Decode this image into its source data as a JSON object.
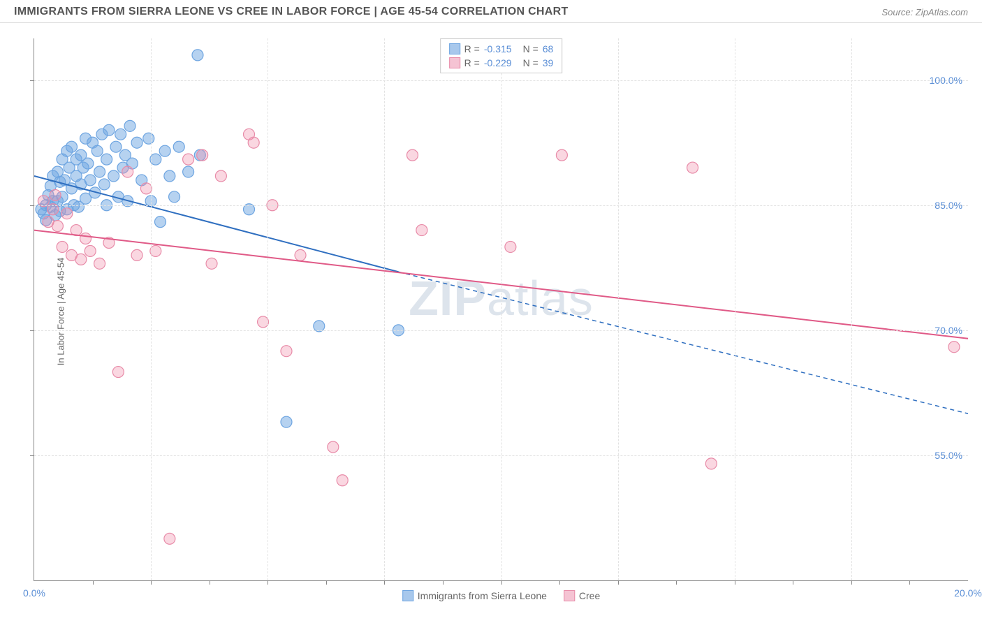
{
  "title": "IMMIGRANTS FROM SIERRA LEONE VS CREE IN LABOR FORCE | AGE 45-54 CORRELATION CHART",
  "source": "Source: ZipAtlas.com",
  "ylabel": "In Labor Force | Age 45-54",
  "watermark": {
    "bold": "ZIP",
    "light": "atlas"
  },
  "xlim": [
    0,
    20
  ],
  "ylim": [
    40,
    105
  ],
  "xtick_labels": [
    {
      "v": 0,
      "label": "0.0%"
    },
    {
      "v": 20,
      "label": "20.0%"
    }
  ],
  "ytick_labels": [
    {
      "v": 55,
      "label": "55.0%"
    },
    {
      "v": 70,
      "label": "70.0%"
    },
    {
      "v": 85,
      "label": "85.0%"
    },
    {
      "v": 100,
      "label": "100.0%"
    }
  ],
  "x_gridlines": [
    2.5,
    5,
    7.5,
    10,
    12.5,
    15,
    17.5
  ],
  "y_gridlines": [
    55,
    70,
    85,
    100
  ],
  "x_minor_ticks": [
    1.25,
    2.5,
    3.75,
    5,
    6.25,
    7.5,
    8.75,
    10,
    11.25,
    12.5,
    13.75,
    15,
    16.25,
    17.5,
    18.75
  ],
  "grid_color": "#e2e2e2",
  "series": [
    {
      "name": "Immigrants from Sierra Leone",
      "key": "sierra",
      "color_fill": "rgba(110,165,225,0.5)",
      "color_stroke": "#6ea5e1",
      "swatch_fill": "#a8c8ec",
      "swatch_border": "#6ea5e1",
      "r_stat": "-0.315",
      "n_stat": "68",
      "trend": {
        "x1": 0,
        "y1": 88.5,
        "x2": 7.8,
        "y2": 77.0,
        "x2d": 20,
        "y2d": 60.0,
        "stroke": "#2f6fc0",
        "width": 2
      },
      "points": [
        [
          0.15,
          84.5
        ],
        [
          0.2,
          84
        ],
        [
          0.25,
          85
        ],
        [
          0.25,
          83.2
        ],
        [
          0.3,
          86.2
        ],
        [
          0.35,
          84.8
        ],
        [
          0.35,
          87.3
        ],
        [
          0.4,
          85.5
        ],
        [
          0.4,
          88.5
        ],
        [
          0.45,
          83.8
        ],
        [
          0.5,
          89
        ],
        [
          0.5,
          85.5
        ],
        [
          0.55,
          87.8
        ],
        [
          0.55,
          84.3
        ],
        [
          0.6,
          90.5
        ],
        [
          0.6,
          86
        ],
        [
          0.65,
          88
        ],
        [
          0.7,
          84.5
        ],
        [
          0.7,
          91.5
        ],
        [
          0.75,
          89.5
        ],
        [
          0.8,
          87
        ],
        [
          0.8,
          92
        ],
        [
          0.85,
          85
        ],
        [
          0.9,
          90.5
        ],
        [
          0.9,
          88.5
        ],
        [
          0.95,
          84.8
        ],
        [
          1.0,
          91
        ],
        [
          1.0,
          87.5
        ],
        [
          1.05,
          89.5
        ],
        [
          1.1,
          93
        ],
        [
          1.1,
          85.8
        ],
        [
          1.15,
          90
        ],
        [
          1.2,
          88
        ],
        [
          1.25,
          92.5
        ],
        [
          1.3,
          86.5
        ],
        [
          1.35,
          91.5
        ],
        [
          1.4,
          89
        ],
        [
          1.45,
          93.5
        ],
        [
          1.5,
          87.5
        ],
        [
          1.55,
          90.5
        ],
        [
          1.55,
          85
        ],
        [
          1.6,
          94
        ],
        [
          1.7,
          88.5
        ],
        [
          1.75,
          92
        ],
        [
          1.8,
          86
        ],
        [
          1.85,
          93.5
        ],
        [
          1.9,
          89.5
        ],
        [
          1.95,
          91
        ],
        [
          2.0,
          85.5
        ],
        [
          2.05,
          94.5
        ],
        [
          2.1,
          90
        ],
        [
          2.2,
          92.5
        ],
        [
          2.3,
          88
        ],
        [
          2.45,
          93
        ],
        [
          2.5,
          85.5
        ],
        [
          2.6,
          90.5
        ],
        [
          2.7,
          83
        ],
        [
          2.8,
          91.5
        ],
        [
          2.9,
          88.5
        ],
        [
          3.0,
          86
        ],
        [
          3.1,
          92
        ],
        [
          3.3,
          89
        ],
        [
          3.5,
          103
        ],
        [
          3.55,
          91
        ],
        [
          4.6,
          84.5
        ],
        [
          5.4,
          59
        ],
        [
          6.1,
          70.5
        ],
        [
          7.8,
          70
        ]
      ]
    },
    {
      "name": "Cree",
      "key": "cree",
      "color_fill": "rgba(240,140,170,0.35)",
      "color_stroke": "#e88ba8",
      "swatch_fill": "#f5c3d3",
      "swatch_border": "#e88ba8",
      "r_stat": "-0.229",
      "n_stat": "39",
      "trend": {
        "x1": 0,
        "y1": 82.0,
        "x2": 20,
        "y2": 69.0,
        "x2d": 20,
        "y2d": 69.0,
        "stroke": "#e05a87",
        "width": 2
      },
      "points": [
        [
          0.2,
          85.5
        ],
        [
          0.3,
          83
        ],
        [
          0.4,
          84.5
        ],
        [
          0.45,
          86.2
        ],
        [
          0.5,
          82.5
        ],
        [
          0.6,
          80
        ],
        [
          0.7,
          84
        ],
        [
          0.8,
          79
        ],
        [
          0.9,
          82
        ],
        [
          1.0,
          78.5
        ],
        [
          1.1,
          81
        ],
        [
          1.2,
          79.5
        ],
        [
          1.4,
          78
        ],
        [
          1.6,
          80.5
        ],
        [
          1.8,
          65
        ],
        [
          2.0,
          89
        ],
        [
          2.2,
          79
        ],
        [
          2.4,
          87
        ],
        [
          2.6,
          79.5
        ],
        [
          2.9,
          45
        ],
        [
          3.3,
          90.5
        ],
        [
          3.6,
          91
        ],
        [
          3.8,
          78
        ],
        [
          4.0,
          88.5
        ],
        [
          4.6,
          93.5
        ],
        [
          4.7,
          92.5
        ],
        [
          4.9,
          71
        ],
        [
          5.1,
          85
        ],
        [
          5.4,
          67.5
        ],
        [
          5.7,
          79
        ],
        [
          6.4,
          56
        ],
        [
          6.6,
          52
        ],
        [
          8.1,
          91
        ],
        [
          8.3,
          82
        ],
        [
          10.2,
          80
        ],
        [
          11.3,
          91
        ],
        [
          14.1,
          89.5
        ],
        [
          14.5,
          54
        ],
        [
          19.7,
          68
        ]
      ]
    }
  ],
  "legend_bottom": [
    {
      "label": "Immigrants from Sierra Leone",
      "fill": "#a8c8ec",
      "border": "#6ea5e1"
    },
    {
      "label": "Cree",
      "fill": "#f5c3d3",
      "border": "#e88ba8"
    }
  ],
  "marker_radius": 8,
  "chart_bg": "#ffffff",
  "title_color": "#555",
  "axis_label_color": "#5b8fd6"
}
